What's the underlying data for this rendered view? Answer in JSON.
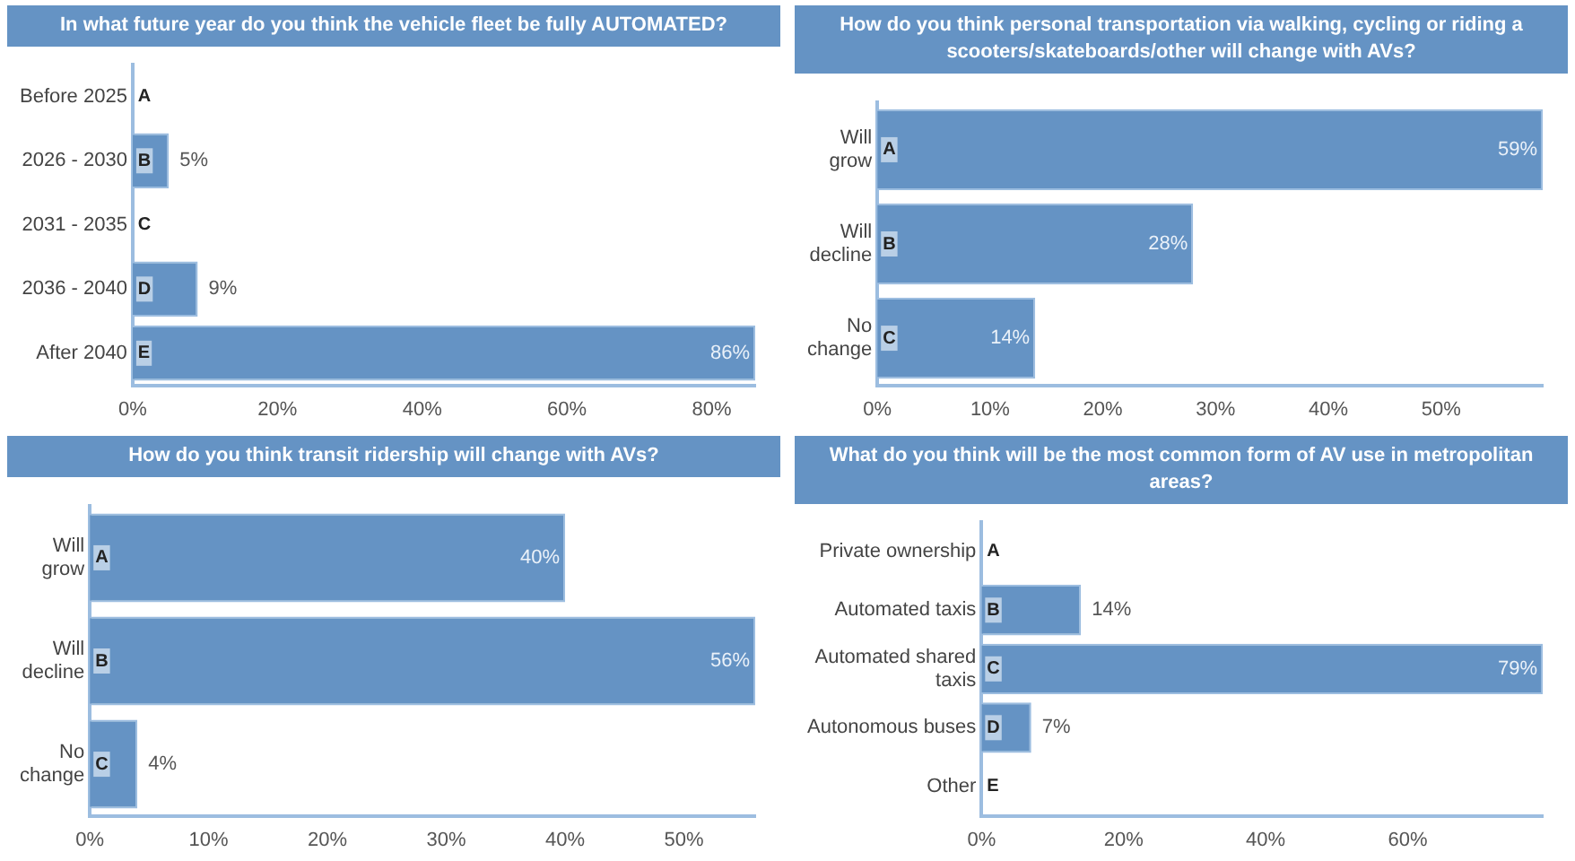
{
  "chart_data": [
    {
      "type": "bar",
      "orientation": "horizontal",
      "title": "In what future year do you think the vehicle fleet be fully AUTOMATED?",
      "categories": [
        "Before 2025",
        "2026 - 2030",
        "2031 - 2035",
        "2036 - 2040",
        "After 2040"
      ],
      "values": [
        0,
        5,
        0,
        9,
        86
      ],
      "value_labels": [
        null,
        "5%",
        null,
        "9%",
        "86%"
      ],
      "color": "#6593c4",
      "xlim": [
        0,
        86
      ],
      "xticks": [
        {
          "value": 0,
          "label": "0%"
        },
        {
          "value": 20,
          "label": "20%"
        },
        {
          "value": 40,
          "label": "40%"
        },
        {
          "value": 60,
          "label": "60%"
        },
        {
          "value": 80,
          "label": "80%"
        }
      ],
      "grid": false,
      "legend": false,
      "annotations": [
        "A",
        "B",
        "C",
        "D",
        "E"
      ]
    },
    {
      "type": "bar",
      "orientation": "horizontal",
      "title": "How do you think personal transportation via walking, cycling or riding a scooters/skateboards/other will change with AVs?",
      "categories": [
        "Will grow",
        "Will decline",
        "No change"
      ],
      "values": [
        59,
        28,
        14
      ],
      "value_labels": [
        "59%",
        "28%",
        "14%"
      ],
      "color": "#6593c4",
      "xlim": [
        0,
        59
      ],
      "xticks": [
        {
          "value": 0,
          "label": "0%"
        },
        {
          "value": 10,
          "label": "10%"
        },
        {
          "value": 20,
          "label": "20%"
        },
        {
          "value": 30,
          "label": "30%"
        },
        {
          "value": 40,
          "label": "40%"
        },
        {
          "value": 50,
          "label": "50%"
        }
      ],
      "grid": false,
      "legend": false,
      "annotations": [
        "A",
        "B",
        "C"
      ]
    },
    {
      "type": "bar",
      "orientation": "horizontal",
      "title": "How do you think transit ridership will change with AVs?",
      "categories": [
        "Will grow",
        "Will decline",
        "No change"
      ],
      "values": [
        40,
        56,
        4
      ],
      "value_labels": [
        "40%",
        "56%",
        "4%"
      ],
      "color": "#6593c4",
      "xlim": [
        0,
        56
      ],
      "xticks": [
        {
          "value": 0,
          "label": "0%"
        },
        {
          "value": 10,
          "label": "10%"
        },
        {
          "value": 20,
          "label": "20%"
        },
        {
          "value": 30,
          "label": "30%"
        },
        {
          "value": 40,
          "label": "40%"
        },
        {
          "value": 50,
          "label": "50%"
        }
      ],
      "grid": false,
      "legend": false,
      "annotations": [
        "A",
        "B",
        "C"
      ]
    },
    {
      "type": "bar",
      "orientation": "horizontal",
      "title": "What do you think will be the most common form of AV use in metropolitan areas?",
      "categories": [
        "Private ownership",
        "Automated taxis",
        "Automated shared taxis",
        "Autonomous buses",
        "Other"
      ],
      "values": [
        0,
        14,
        79,
        7,
        0
      ],
      "value_labels": [
        null,
        "14%",
        "79%",
        "7%",
        null
      ],
      "color": "#6593c4",
      "xlim": [
        0,
        79
      ],
      "xticks": [
        {
          "value": 0,
          "label": "0%"
        },
        {
          "value": 20,
          "label": "20%"
        },
        {
          "value": 40,
          "label": "40%"
        },
        {
          "value": 60,
          "label": "60%"
        }
      ],
      "grid": false,
      "legend": false,
      "annotations": [
        "A",
        "B",
        "C",
        "D",
        "E"
      ]
    }
  ]
}
